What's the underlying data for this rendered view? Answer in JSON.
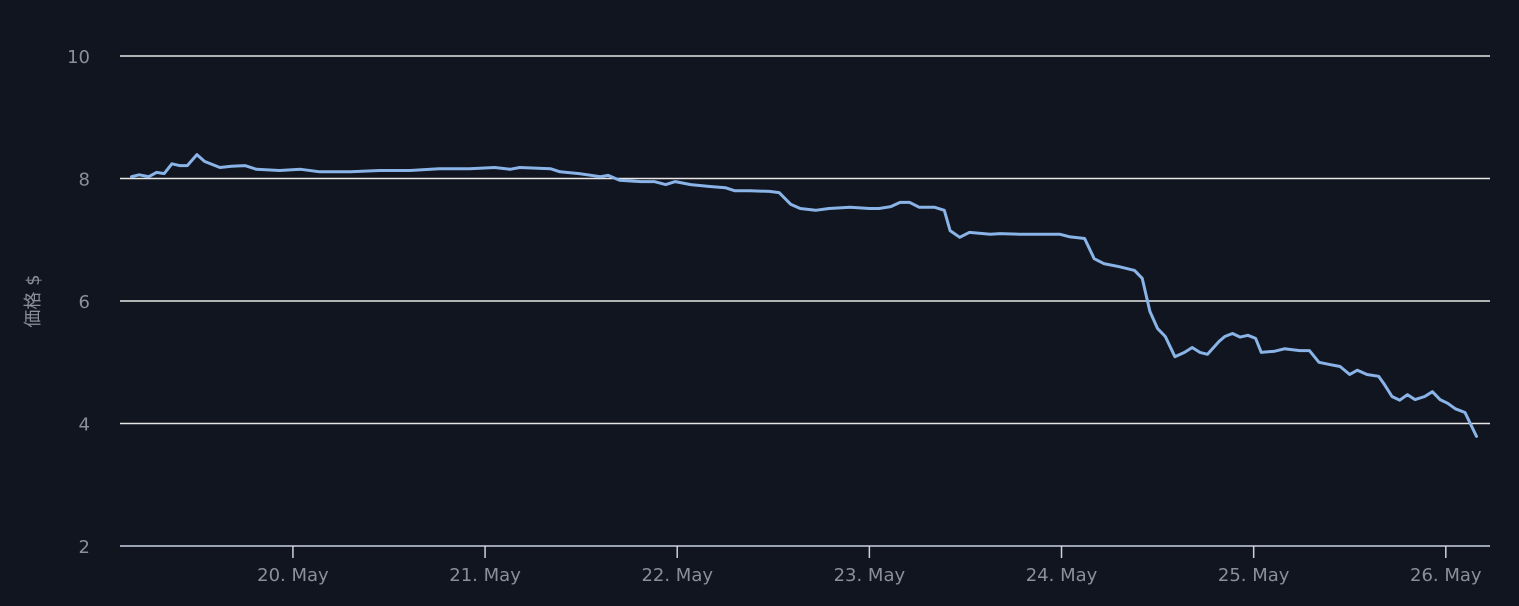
{
  "chart_data": {
    "type": "line",
    "y_label": "価格 $",
    "x": [
      19.16,
      19.2,
      19.25,
      19.29,
      19.33,
      19.37,
      19.41,
      19.45,
      19.5,
      19.54,
      19.62,
      19.68,
      19.75,
      19.81,
      19.93,
      20.04,
      20.14,
      20.3,
      20.45,
      20.61,
      20.76,
      20.92,
      21.05,
      21.13,
      21.18,
      21.34,
      21.39,
      21.49,
      21.6,
      21.64,
      21.7,
      21.81,
      21.88,
      21.94,
      21.99,
      22.07,
      22.17,
      22.25,
      22.3,
      22.38,
      22.48,
      22.53,
      22.59,
      22.64,
      22.72,
      22.79,
      22.9,
      23.0,
      23.05,
      23.11,
      23.16,
      23.21,
      23.26,
      23.34,
      23.39,
      23.42,
      23.47,
      23.52,
      23.63,
      23.68,
      23.78,
      23.89,
      23.99,
      24.04,
      24.12,
      24.17,
      24.22,
      24.3,
      24.38,
      24.42,
      24.46,
      24.5,
      24.54,
      24.59,
      24.64,
      24.68,
      24.72,
      24.76,
      24.82,
      24.85,
      24.89,
      24.93,
      24.97,
      25.01,
      25.04,
      25.11,
      25.16,
      25.24,
      25.29,
      25.34,
      25.4,
      25.45,
      25.5,
      25.54,
      25.59,
      25.65,
      25.68,
      25.72,
      25.76,
      25.8,
      25.84,
      25.89,
      25.93,
      25.97,
      26.01,
      26.05,
      26.1,
      26.16
    ],
    "series": [
      {
        "name": "価格",
        "color": "#8ab4e8",
        "values": [
          8.03,
          8.06,
          8.03,
          8.1,
          8.08,
          8.24,
          8.21,
          8.21,
          8.39,
          8.28,
          8.18,
          8.2,
          8.21,
          8.15,
          8.13,
          8.15,
          8.11,
          8.11,
          8.13,
          8.13,
          8.16,
          8.16,
          8.18,
          8.15,
          8.18,
          8.16,
          8.11,
          8.08,
          8.03,
          8.05,
          7.97,
          7.95,
          7.95,
          7.9,
          7.95,
          7.9,
          7.87,
          7.85,
          7.8,
          7.8,
          7.79,
          7.77,
          7.58,
          7.51,
          7.48,
          7.51,
          7.53,
          7.51,
          7.51,
          7.54,
          7.61,
          7.61,
          7.53,
          7.53,
          7.48,
          7.15,
          7.04,
          7.12,
          7.09,
          7.1,
          7.09,
          7.09,
          7.09,
          7.05,
          7.02,
          6.69,
          6.61,
          6.56,
          6.5,
          6.37,
          5.83,
          5.55,
          5.42,
          5.09,
          5.16,
          5.24,
          5.16,
          5.13,
          5.34,
          5.42,
          5.47,
          5.41,
          5.44,
          5.39,
          5.16,
          5.18,
          5.22,
          5.19,
          5.19,
          5.0,
          4.96,
          4.93,
          4.8,
          4.87,
          4.8,
          4.77,
          4.64,
          4.44,
          4.38,
          4.47,
          4.39,
          4.44,
          4.52,
          4.39,
          4.33,
          4.24,
          4.18,
          3.79
        ]
      }
    ],
    "xlim": [
      19.1,
      26.23
    ],
    "xticks": [
      {
        "value": 20,
        "label": "20. May"
      },
      {
        "value": 21,
        "label": "21. May"
      },
      {
        "value": 22,
        "label": "22. May"
      },
      {
        "value": 23,
        "label": "23. May"
      },
      {
        "value": 24,
        "label": "24. May"
      },
      {
        "value": 25,
        "label": "25. May"
      },
      {
        "value": 26,
        "label": "26. May"
      }
    ],
    "ylim": [
      2,
      10
    ],
    "yticks": [
      2,
      4,
      6,
      8,
      10
    ],
    "grid": true
  }
}
